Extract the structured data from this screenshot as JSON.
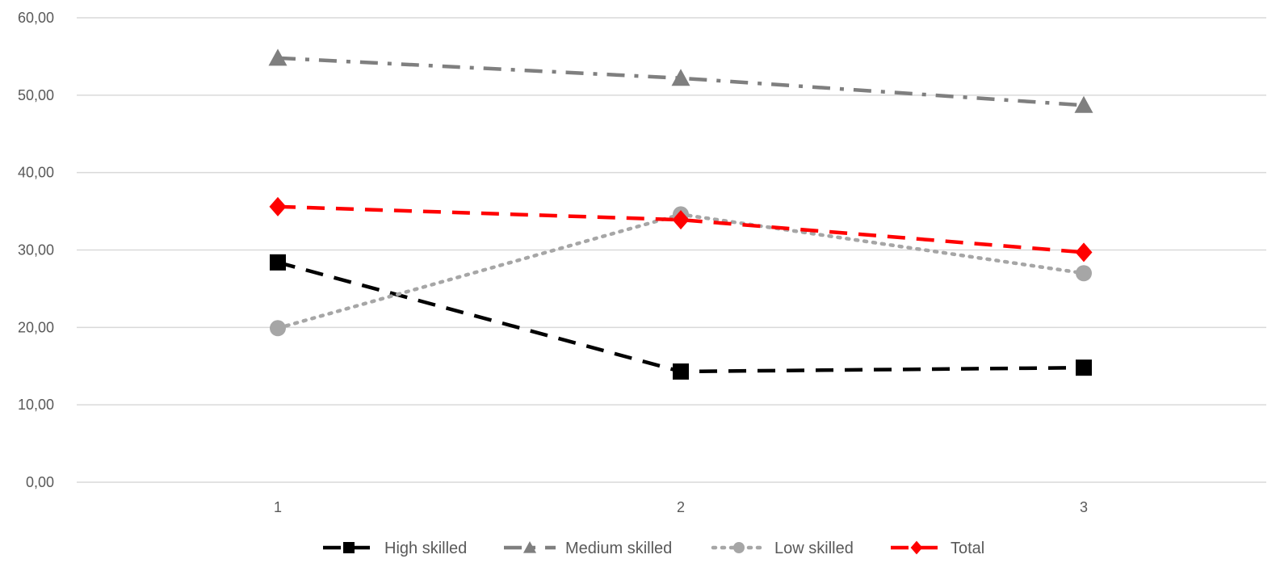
{
  "chart_data": {
    "type": "line",
    "title": "",
    "xlabel": "",
    "ylabel": "",
    "x": [
      1,
      2,
      3
    ],
    "x_tick_labels": [
      "1",
      "2",
      "3"
    ],
    "ylim": [
      0,
      60
    ],
    "y_ticks": [
      0,
      10,
      20,
      30,
      40,
      50,
      60
    ],
    "y_tick_labels": [
      "0,00",
      "10,00",
      "20,00",
      "30,00",
      "40,00",
      "50,00",
      "60,00"
    ],
    "grid": "horizontal",
    "legend_position": "bottom",
    "series": [
      {
        "name": "High skilled",
        "values": [
          28.4,
          14.3,
          14.8
        ],
        "color": "#000000",
        "marker": "square",
        "line_style": "dashed"
      },
      {
        "name": "Medium skilled",
        "values": [
          54.8,
          52.2,
          48.7
        ],
        "color": "#7f7f7f",
        "marker": "triangle",
        "line_style": "dash-dot"
      },
      {
        "name": "Low skilled",
        "values": [
          19.9,
          34.6,
          27.0
        ],
        "color": "#a6a6a6",
        "marker": "circle",
        "line_style": "dotted"
      },
      {
        "name": "Total",
        "values": [
          35.6,
          33.9,
          29.7
        ],
        "color": "#ff0000",
        "marker": "diamond",
        "line_style": "dashed"
      }
    ]
  }
}
